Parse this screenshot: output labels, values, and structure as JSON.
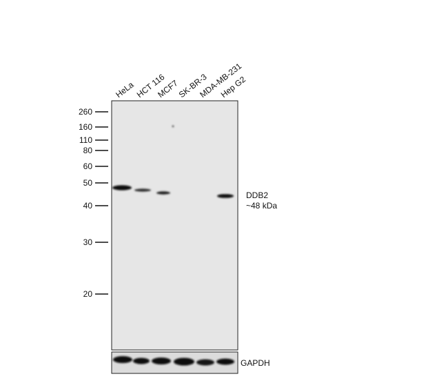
{
  "lanes": [
    "HeLa",
    "HCT 116",
    "MCF7",
    "SK-BR-3",
    "MDA-MB-231",
    "Hep G2"
  ],
  "markers": [
    "260",
    "160",
    "110",
    "80",
    "60",
    "50",
    "40",
    "30",
    "20"
  ],
  "target": {
    "name": "DDB2",
    "size": "~48 kDa"
  },
  "loading_control": "GAPDH"
}
